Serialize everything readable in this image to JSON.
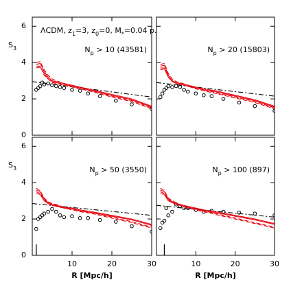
{
  "chart_data": [
    {
      "type": "line",
      "annotation": [
        "ΛCDM, z",
        "1",
        "=3, z",
        "0",
        "=0, M",
        "*",
        "=0.04 p."
      ],
      "label": [
        "N",
        "p",
        " > 10 (43581)"
      ],
      "ylabel": [
        "S",
        "3"
      ],
      "xlim": [
        0,
        30
      ],
      "ylim": [
        0,
        6.5
      ],
      "xticks": [
        10,
        20,
        30
      ],
      "yticks": [
        0,
        2,
        4,
        6
      ],
      "series": [
        {
          "style": "circles",
          "color": "#000000",
          "x": [
            1,
            1.5,
            2,
            2.5,
            3,
            4,
            5,
            6,
            7,
            8,
            10,
            12,
            14,
            17,
            21,
            25,
            30
          ],
          "values": [
            2.5,
            2.6,
            2.7,
            2.9,
            2.8,
            2.85,
            2.75,
            2.7,
            2.65,
            2.6,
            2.5,
            2.45,
            2.3,
            2.15,
            1.9,
            1.7,
            1.45
          ]
        },
        {
          "style": "dashdot",
          "color": "#000000",
          "x": [
            0,
            30
          ],
          "values": [
            2.95,
            2.1
          ]
        },
        {
          "style": "solid",
          "color": "#e8000b",
          "x": [
            1,
            2,
            3,
            4,
            5,
            6,
            8,
            10,
            12,
            15,
            20,
            25,
            30
          ],
          "values": [
            3.9,
            3.95,
            3.5,
            3.2,
            3.0,
            2.95,
            2.85,
            2.75,
            2.65,
            2.5,
            2.25,
            2.0,
            1.6
          ]
        },
        {
          "style": "solid",
          "color": "#e8000b",
          "x": [
            1,
            2,
            3,
            4,
            5,
            6,
            8,
            10,
            12,
            15,
            20,
            25,
            30
          ],
          "values": [
            3.7,
            3.75,
            3.4,
            3.1,
            2.95,
            2.9,
            2.8,
            2.7,
            2.6,
            2.45,
            2.2,
            1.95,
            1.55
          ]
        },
        {
          "style": "dashed",
          "color": "#e8000b",
          "x": [
            1,
            2,
            3,
            4,
            5,
            6,
            8,
            10,
            12,
            15,
            20,
            25,
            30
          ],
          "values": [
            4.0,
            4.05,
            3.6,
            3.3,
            3.1,
            3.0,
            2.85,
            2.7,
            2.6,
            2.45,
            2.15,
            1.9,
            1.5
          ]
        },
        {
          "style": "dashed",
          "color": "#e8000b",
          "x": [
            1,
            2,
            3,
            4,
            5,
            6,
            8,
            10,
            12,
            15,
            20,
            25,
            30
          ],
          "values": [
            3.8,
            3.8,
            3.3,
            3.1,
            2.9,
            2.85,
            2.75,
            2.65,
            2.55,
            2.4,
            2.1,
            1.85,
            1.45
          ]
        }
      ]
    },
    {
      "type": "line",
      "label": [
        "N",
        "p",
        " > 20 (15803)"
      ],
      "xlim": [
        0,
        30
      ],
      "ylim": [
        0,
        6.5
      ],
      "xticks": [
        10,
        20,
        30
      ],
      "yticks": [
        0,
        2,
        4,
        6
      ],
      "series": [
        {
          "style": "circles",
          "color": "#000000",
          "x": [
            1,
            1.5,
            2,
            2.5,
            3,
            4,
            5,
            6,
            7,
            8,
            10,
            12,
            14,
            17,
            21,
            25,
            30
          ],
          "values": [
            2.1,
            2.3,
            2.5,
            2.6,
            2.7,
            2.65,
            2.7,
            2.65,
            2.5,
            2.4,
            2.3,
            2.2,
            2.15,
            2.0,
            1.8,
            1.6,
            1.35
          ]
        },
        {
          "style": "dashdot",
          "color": "#000000",
          "x": [
            0,
            30
          ],
          "values": [
            2.9,
            2.15
          ]
        },
        {
          "style": "solid",
          "color": "#e8000b",
          "x": [
            1,
            2,
            3,
            4,
            5,
            6,
            8,
            10,
            12,
            15,
            20,
            25,
            30
          ],
          "values": [
            3.8,
            3.85,
            3.3,
            3.0,
            2.9,
            2.85,
            2.75,
            2.65,
            2.55,
            2.45,
            2.2,
            1.95,
            1.6
          ]
        },
        {
          "style": "solid",
          "color": "#e8000b",
          "x": [
            1,
            2,
            3,
            4,
            5,
            6,
            8,
            10,
            12,
            15,
            20,
            25,
            30
          ],
          "values": [
            3.6,
            3.65,
            3.2,
            2.95,
            2.85,
            2.8,
            2.7,
            2.6,
            2.5,
            2.4,
            2.15,
            1.9,
            1.55
          ]
        },
        {
          "style": "dashed",
          "color": "#e8000b",
          "x": [
            1,
            2,
            3,
            4,
            5,
            6,
            8,
            10,
            12,
            15,
            20,
            25,
            30
          ],
          "values": [
            3.9,
            3.95,
            3.4,
            3.1,
            2.95,
            2.9,
            2.75,
            2.6,
            2.5,
            2.35,
            2.1,
            1.85,
            1.5
          ]
        },
        {
          "style": "dashed",
          "color": "#e8000b",
          "x": [
            1,
            2,
            3,
            4,
            5,
            6,
            8,
            10,
            12,
            15,
            20,
            25,
            30
          ],
          "values": [
            3.7,
            3.7,
            3.2,
            3.0,
            2.85,
            2.8,
            2.7,
            2.55,
            2.45,
            2.3,
            2.05,
            1.8,
            1.45
          ]
        }
      ]
    },
    {
      "type": "line",
      "label": [
        "N",
        "p",
        " > 50 (3550)"
      ],
      "ylabel": [
        "S",
        "3"
      ],
      "xlabel": "R [Mpc/h]",
      "marker": {
        "x": 1,
        "height": 0.6
      },
      "xlim": [
        0,
        30
      ],
      "ylim": [
        0,
        6.5
      ],
      "xticks": [
        10,
        20,
        30
      ],
      "yticks": [
        0,
        2,
        4,
        6
      ],
      "series": [
        {
          "style": "circles",
          "color": "#000000",
          "x": [
            1,
            1.5,
            2,
            2.5,
            3,
            4,
            5,
            6,
            7,
            8,
            10,
            12,
            14,
            17,
            21,
            25,
            30
          ],
          "values": [
            1.45,
            2.0,
            2.1,
            2.2,
            2.3,
            2.4,
            2.55,
            2.4,
            2.2,
            2.1,
            2.15,
            2.05,
            2.05,
            1.95,
            1.85,
            1.6,
            1.3
          ]
        },
        {
          "style": "dashdot",
          "color": "#000000",
          "x": [
            0,
            30
          ],
          "values": [
            2.85,
            2.2
          ]
        },
        {
          "style": "solid",
          "color": "#e8000b",
          "x": [
            1,
            2,
            3,
            4,
            5,
            6,
            8,
            10,
            12,
            15,
            20,
            25,
            30
          ],
          "values": [
            3.6,
            3.5,
            3.1,
            2.9,
            2.8,
            2.75,
            2.65,
            2.6,
            2.5,
            2.4,
            2.2,
            2.0,
            1.7
          ]
        },
        {
          "style": "solid",
          "color": "#e8000b",
          "x": [
            1,
            2,
            3,
            4,
            5,
            6,
            8,
            10,
            12,
            15,
            20,
            25,
            30
          ],
          "values": [
            3.4,
            3.35,
            3.0,
            2.85,
            2.75,
            2.7,
            2.6,
            2.55,
            2.45,
            2.35,
            2.15,
            1.95,
            1.65
          ]
        },
        {
          "style": "dashed",
          "color": "#e8000b",
          "x": [
            1,
            2,
            3,
            4,
            5,
            6,
            8,
            10,
            12,
            15,
            20,
            25,
            30
          ],
          "values": [
            3.7,
            3.55,
            3.15,
            2.95,
            2.85,
            2.8,
            2.65,
            2.55,
            2.45,
            2.35,
            2.1,
            1.85,
            1.55
          ]
        },
        {
          "style": "dashed",
          "color": "#e8000b",
          "x": [
            1,
            2,
            3,
            4,
            5,
            6,
            8,
            10,
            12,
            15,
            20,
            25,
            30
          ],
          "values": [
            3.5,
            3.4,
            3.05,
            2.9,
            2.8,
            2.75,
            2.6,
            2.5,
            2.4,
            2.3,
            2.05,
            1.8,
            1.5
          ]
        }
      ]
    },
    {
      "type": "line",
      "label": [
        "N",
        "p",
        " > 100 (897)"
      ],
      "xlabel": "R [Mpc/h]",
      "marker": {
        "x": 2,
        "height": 0.6
      },
      "xlim": [
        0,
        30
      ],
      "ylim": [
        0,
        6.5
      ],
      "xticks": [
        10,
        20,
        30
      ],
      "yticks": [
        0,
        2,
        4,
        6
      ],
      "series": [
        {
          "style": "circles",
          "color": "#000000",
          "x": [
            1,
            1.5,
            2,
            2.5,
            3,
            4,
            5,
            6,
            7,
            8,
            10,
            12,
            14,
            17,
            21,
            25,
            30
          ],
          "values": [
            1.5,
            1.8,
            1.9,
            2.6,
            2.2,
            2.4,
            2.8,
            2.7,
            2.6,
            2.6,
            2.5,
            2.4,
            2.45,
            2.4,
            2.35,
            2.3,
            2.2
          ]
        },
        {
          "style": "dashdot",
          "color": "#000000",
          "x": [
            0,
            30
          ],
          "values": [
            2.75,
            2.1
          ]
        },
        {
          "style": "solid",
          "color": "#e8000b",
          "x": [
            1,
            2,
            3,
            4,
            5,
            6,
            8,
            10,
            12,
            15,
            20,
            25,
            30
          ],
          "values": [
            3.6,
            3.5,
            3.1,
            2.95,
            2.85,
            2.8,
            2.7,
            2.6,
            2.5,
            2.4,
            2.2,
            2.0,
            1.75
          ]
        },
        {
          "style": "solid",
          "color": "#e8000b",
          "x": [
            1,
            2,
            3,
            4,
            5,
            6,
            8,
            10,
            12,
            15,
            20,
            25,
            30
          ],
          "values": [
            3.4,
            3.35,
            3.0,
            2.9,
            2.8,
            2.75,
            2.65,
            2.55,
            2.45,
            2.35,
            2.15,
            1.95,
            1.7
          ]
        },
        {
          "style": "dashed",
          "color": "#e8000b",
          "x": [
            1,
            2,
            3,
            4,
            5,
            6,
            8,
            10,
            12,
            15,
            20,
            25,
            30
          ],
          "values": [
            3.7,
            3.55,
            3.15,
            3.0,
            2.9,
            2.8,
            2.65,
            2.55,
            2.45,
            2.3,
            2.05,
            1.8,
            1.55
          ]
        },
        {
          "style": "dashed",
          "color": "#e8000b",
          "x": [
            1,
            2,
            3,
            4,
            5,
            6,
            8,
            10,
            12,
            15,
            20,
            25,
            30
          ],
          "values": [
            3.5,
            3.4,
            3.05,
            2.9,
            2.8,
            2.75,
            2.6,
            2.5,
            2.4,
            2.25,
            2.0,
            1.75,
            1.5
          ]
        }
      ]
    }
  ]
}
